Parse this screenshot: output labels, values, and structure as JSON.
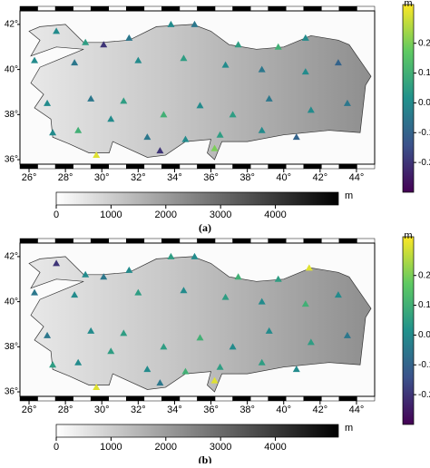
{
  "panels": [
    {
      "label": "(a)",
      "xticks": [
        {
          "value": 26,
          "label": "26°"
        },
        {
          "value": 28,
          "label": "28°"
        },
        {
          "value": 30,
          "label": "30°"
        },
        {
          "value": 32,
          "label": "32°"
        },
        {
          "value": 34,
          "label": "34°"
        },
        {
          "value": 36,
          "label": "36°"
        },
        {
          "value": 38,
          "label": "38°"
        },
        {
          "value": 40,
          "label": "40°"
        },
        {
          "value": 42,
          "label": "42°"
        },
        {
          "value": 44,
          "label": "44°"
        }
      ],
      "yticks": [
        {
          "value": 36,
          "label": "36°"
        },
        {
          "value": 38,
          "label": "38°"
        },
        {
          "value": 40,
          "label": "40°"
        },
        {
          "value": 42,
          "label": "42°"
        }
      ],
      "xlim": [
        25.5,
        45
      ],
      "ylim": [
        35.8,
        42.6
      ],
      "colorbar": {
        "unit": "m",
        "lim": [
          -0.3,
          0.33
        ],
        "ticks": [
          0.2,
          0.1,
          {
            "value": 0,
            "label": "0.0"
          },
          -0.1,
          -0.2
        ]
      },
      "elevation_bar": {
        "unit": "m",
        "lim": [
          0,
          5150
        ],
        "ticks": [
          0,
          1000,
          2000,
          3000,
          4000
        ]
      },
      "stations": {
        "lon": [
          27.5,
          29.1,
          30.1,
          31.5,
          33.8,
          35.1,
          37.5,
          39.7,
          41.2,
          26.3,
          28.5,
          32.0,
          34.5,
          36.8,
          38.8,
          41.2,
          43.0,
          27.0,
          29.4,
          31.2,
          33.4,
          35.4,
          37.2,
          39.2,
          41.5,
          43.5,
          27.3,
          28.7,
          30.5,
          32.5,
          34.6,
          36.5,
          38.8,
          40.7,
          29.7,
          33.2,
          36.2
        ],
        "lat": [
          41.7,
          41.2,
          41.1,
          41.4,
          42.0,
          42.0,
          41.1,
          41.0,
          41.4,
          40.4,
          40.3,
          40.4,
          40.5,
          40.2,
          40.0,
          39.9,
          40.3,
          38.5,
          38.7,
          38.6,
          38.0,
          38.4,
          38.0,
          38.7,
          38.2,
          38.5,
          37.2,
          37.3,
          37.8,
          37.0,
          36.9,
          37.1,
          37.3,
          37.0,
          36.2,
          36.4,
          36.5
        ],
        "value": [
          0.0,
          0.05,
          -0.2,
          -0.05,
          0.0,
          -0.05,
          0.05,
          0.1,
          0.0,
          0.0,
          -0.05,
          0.0,
          0.05,
          0.0,
          -0.05,
          0.0,
          -0.1,
          0.0,
          -0.05,
          0.05,
          0.1,
          0.0,
          0.05,
          -0.05,
          0.0,
          -0.05,
          0.0,
          0.1,
          0.0,
          -0.05,
          0.0,
          0.05,
          0.0,
          -0.1,
          0.3,
          -0.2,
          0.2
        ]
      }
    },
    {
      "label": "(b)",
      "xticks": [
        {
          "value": 26,
          "label": "26°"
        },
        {
          "value": 28,
          "label": "28°"
        },
        {
          "value": 30,
          "label": "30°"
        },
        {
          "value": 32,
          "label": "32°"
        },
        {
          "value": 34,
          "label": "34°"
        },
        {
          "value": 36,
          "label": "36°"
        },
        {
          "value": 38,
          "label": "38°"
        },
        {
          "value": 40,
          "label": "40°"
        },
        {
          "value": 42,
          "label": "42°"
        },
        {
          "value": 44,
          "label": "44°"
        }
      ],
      "yticks": [
        {
          "value": 36,
          "label": "36°"
        },
        {
          "value": 38,
          "label": "38°"
        },
        {
          "value": 40,
          "label": "40°"
        },
        {
          "value": 42,
          "label": "42°"
        }
      ],
      "xlim": [
        25.5,
        45
      ],
      "ylim": [
        35.8,
        42.6
      ],
      "colorbar": {
        "unit": "m",
        "lim": [
          -0.3,
          0.33
        ],
        "ticks": [
          0.2,
          0.1,
          {
            "value": 0,
            "label": "0.0"
          },
          -0.1,
          -0.2
        ]
      },
      "elevation_bar": {
        "unit": "m",
        "lim": [
          0,
          5150
        ],
        "ticks": [
          0,
          1000,
          2000,
          3000,
          4000
        ]
      },
      "stations": {
        "lon": [
          27.5,
          29.1,
          30.1,
          31.5,
          33.8,
          35.1,
          37.5,
          39.7,
          41.4,
          26.3,
          28.5,
          32.0,
          34.5,
          36.8,
          38.8,
          41.2,
          43.0,
          27.0,
          29.4,
          31.2,
          33.4,
          35.4,
          37.2,
          39.2,
          41.5,
          43.5,
          27.3,
          28.7,
          30.5,
          32.5,
          34.6,
          36.5,
          38.8,
          40.7,
          29.7,
          33.2,
          36.2
        ],
        "lat": [
          41.7,
          41.2,
          41.1,
          41.4,
          42.0,
          42.0,
          41.1,
          41.0,
          41.5,
          40.4,
          40.3,
          40.4,
          40.5,
          40.2,
          40.0,
          39.9,
          40.3,
          38.5,
          38.7,
          38.6,
          38.0,
          38.4,
          38.0,
          38.7,
          38.2,
          38.5,
          37.2,
          37.3,
          37.8,
          37.0,
          36.9,
          37.1,
          37.3,
          37.0,
          36.2,
          36.4,
          36.5
        ],
        "value": [
          -0.2,
          0.0,
          -0.05,
          0.0,
          0.05,
          0.0,
          0.1,
          0.05,
          0.3,
          -0.05,
          0.0,
          0.05,
          0.0,
          0.05,
          0.0,
          0.1,
          0.0,
          -0.05,
          0.0,
          0.05,
          0.05,
          0.1,
          0.0,
          0.0,
          0.05,
          -0.05,
          0.05,
          0.0,
          0.05,
          0.0,
          0.1,
          0.05,
          0.05,
          0.0,
          0.3,
          -0.05,
          0.3
        ]
      }
    }
  ]
}
